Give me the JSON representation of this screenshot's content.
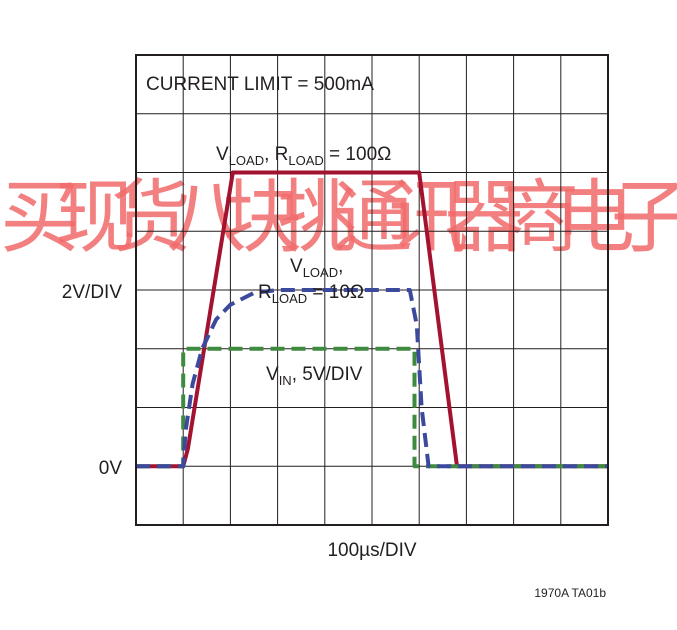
{
  "watermark": {
    "text": "买现货八块挑通讯器商电子",
    "color": "#f26b6b"
  },
  "chart_data": {
    "type": "line",
    "grid": true,
    "x_divisions": 10,
    "y_divisions": 8,
    "xlim_div": [
      0,
      10
    ],
    "ylim_div": [
      -1,
      7
    ],
    "xlabel": "100µs/DIV",
    "ylabel": "2V/DIV",
    "zero_label": "0V",
    "series": [
      {
        "name_main": "V",
        "name_sub": "LOAD",
        "name_mid": ", R",
        "name_sub2": "LOAD",
        "name_tail": " = 100Ω",
        "color": "#a3122f",
        "dash": "solid",
        "x": [
          0,
          1.0,
          1.1,
          2.05,
          6.0,
          6.8,
          10
        ],
        "y": [
          0,
          0,
          0.3,
          5.0,
          5.0,
          0,
          0
        ]
      },
      {
        "name_main": "V",
        "name_sub": "LOAD",
        "name_tail": ",",
        "name_line2_main": "R",
        "name_line2_sub": "LOAD",
        "name_line2_tail": " = 10Ω",
        "color": "#3b4a9c",
        "dash": "dashed",
        "x": [
          0,
          1.0,
          1.05,
          1.2,
          1.4,
          1.7,
          2.0,
          2.5,
          3.0,
          5.8,
          5.95,
          6.05,
          6.2,
          10
        ],
        "y": [
          0,
          0,
          0.6,
          1.4,
          2.0,
          2.5,
          2.75,
          2.95,
          3.0,
          3.0,
          2.4,
          1.0,
          0,
          0
        ]
      },
      {
        "name_main": "V",
        "name_sub": "IN",
        "name_tail": ", 5V/DIV",
        "color": "#3e8a3e",
        "dash": "dashed",
        "x": [
          0,
          1.0,
          1.0,
          5.9,
          5.9,
          10
        ],
        "y": [
          0,
          0,
          2.0,
          2.0,
          0,
          0
        ]
      }
    ],
    "annotation": "CURRENT LIMIT = 500mA",
    "figure_id": "1970A TA01b"
  }
}
